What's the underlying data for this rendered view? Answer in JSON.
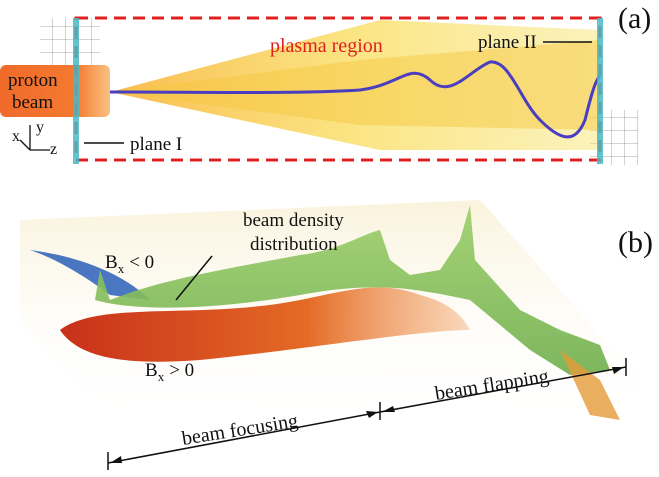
{
  "panel_a": {
    "label": "(a)",
    "region_label": "plasma region",
    "plane_2_label": "plane II",
    "plane_1_label": "plane I",
    "beam_label": [
      "proton",
      "beam"
    ],
    "axes": {
      "x": "x",
      "y": "y",
      "z": "z"
    }
  },
  "panel_b": {
    "label": "(b)",
    "density_label": [
      "beam density",
      "distribution"
    ],
    "negative_field_label": {
      "symbol": "B",
      "subscript": "x",
      "relation": "< 0"
    },
    "positive_field_label": {
      "symbol": "B",
      "subscript": "x",
      "relation": "> 0"
    },
    "focusing_label": "beam focusing",
    "flapping_label": "beam flapping"
  }
}
